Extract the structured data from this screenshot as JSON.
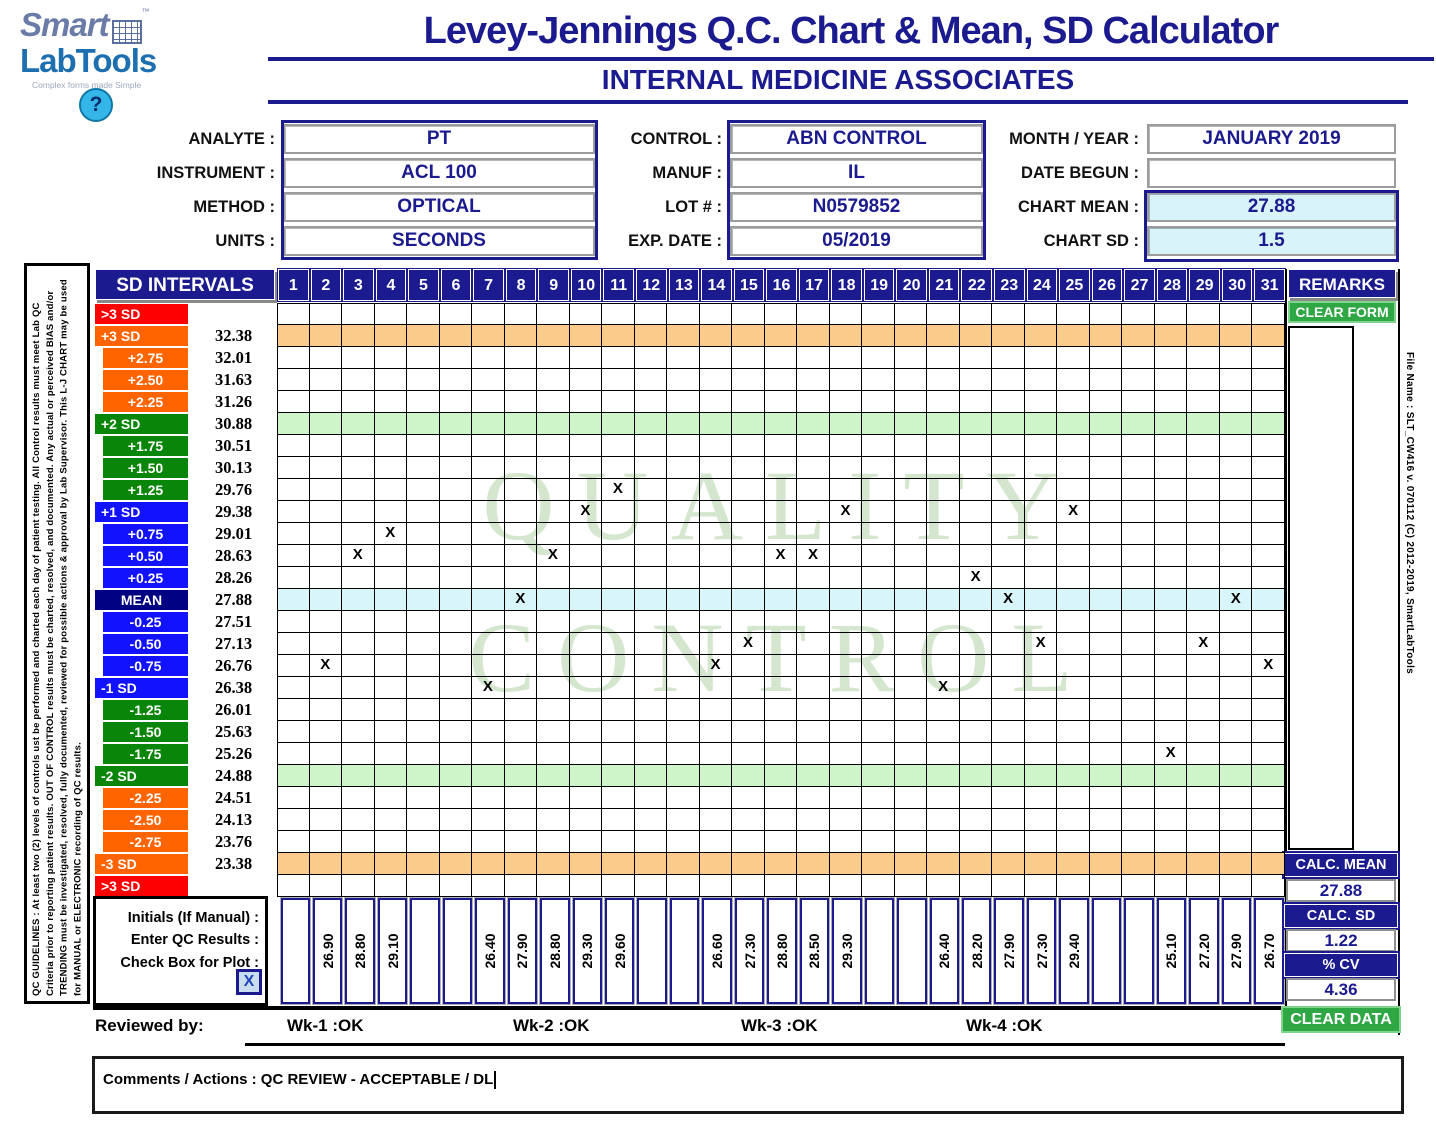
{
  "logo": {
    "smart": "Smart",
    "labtools": "LabTools",
    "tagline": "Complex forms made Simple",
    "help": "?"
  },
  "header": {
    "title": "Levey-Jennings Q.C. Chart & Mean, SD Calculator",
    "subtitle": "INTERNAL MEDICINE ASSOCIATES"
  },
  "form": {
    "left": [
      {
        "label": "ANALYTE :",
        "value": "PT"
      },
      {
        "label": "INSTRUMENT :",
        "value": "ACL 100"
      },
      {
        "label": "METHOD :",
        "value": "OPTICAL"
      },
      {
        "label": "UNITS :",
        "value": "SECONDS"
      }
    ],
    "mid": [
      {
        "label": "CONTROL :",
        "value": "ABN CONTROL"
      },
      {
        "label": "MANUF :",
        "value": "IL"
      },
      {
        "label": "LOT # :",
        "value": "N0579852"
      },
      {
        "label": "EXP. DATE :",
        "value": "05/2019"
      }
    ],
    "right": [
      {
        "label": "MONTH / YEAR :",
        "value": "JANUARY 2019"
      },
      {
        "label": "DATE BEGUN :",
        "value": ""
      },
      {
        "label": "CHART MEAN :",
        "value": "27.88",
        "highlight": true
      },
      {
        "label": "CHART SD :",
        "value": "1.5",
        "highlight": true
      }
    ]
  },
  "table": {
    "sd_intervals_label": "SD INTERVALS",
    "remarks_label": "REMARKS",
    "clear_form_label": "CLEAR FORM",
    "days": [
      "1",
      "2",
      "3",
      "4",
      "5",
      "6",
      "7",
      "8",
      "9",
      "10",
      "11",
      "12",
      "13",
      "14",
      "15",
      "16",
      "17",
      "18",
      "19",
      "20",
      "21",
      "22",
      "23",
      "24",
      "25",
      "26",
      "27",
      "28",
      "29",
      "30",
      "31"
    ],
    "rows": [
      {
        "label": ">3 SD",
        "value": "",
        "color": "red"
      },
      {
        "label": "+3 SD",
        "value": "32.38",
        "color": "orange",
        "band": "tan"
      },
      {
        "label": "+2.75",
        "value": "32.01",
        "color": "orange",
        "indent": true
      },
      {
        "label": "+2.50",
        "value": "31.63",
        "color": "orange",
        "indent": true
      },
      {
        "label": "+2.25",
        "value": "31.26",
        "color": "orange",
        "indent": true
      },
      {
        "label": "+2 SD",
        "value": "30.88",
        "color": "green",
        "band": "green"
      },
      {
        "label": "+1.75",
        "value": "30.51",
        "color": "green",
        "indent": true
      },
      {
        "label": "+1.50",
        "value": "30.13",
        "color": "green",
        "indent": true
      },
      {
        "label": "+1.25",
        "value": "29.76",
        "color": "green",
        "indent": true,
        "marks": [
          11
        ]
      },
      {
        "label": "+1 SD",
        "value": "29.38",
        "color": "blue",
        "marks": [
          10,
          18,
          25
        ]
      },
      {
        "label": "+0.75",
        "value": "29.01",
        "color": "blue",
        "indent": true,
        "marks": [
          4
        ]
      },
      {
        "label": "+0.50",
        "value": "28.63",
        "color": "blue",
        "indent": true,
        "marks": [
          3,
          9,
          16,
          17
        ]
      },
      {
        "label": "+0.25",
        "value": "28.26",
        "color": "blue",
        "indent": true,
        "marks": [
          22
        ]
      },
      {
        "label": "MEAN",
        "value": "27.88",
        "color": "navy",
        "band": "cyan",
        "marks": [
          8,
          23,
          30
        ]
      },
      {
        "label": "-0.25",
        "value": "27.51",
        "color": "blue",
        "indent": true
      },
      {
        "label": "-0.50",
        "value": "27.13",
        "color": "blue",
        "indent": true,
        "marks": [
          15,
          24,
          29
        ]
      },
      {
        "label": "-0.75",
        "value": "26.76",
        "color": "blue",
        "indent": true,
        "marks": [
          2,
          14,
          31
        ]
      },
      {
        "label": "-1 SD",
        "value": "26.38",
        "color": "blue",
        "marks": [
          7,
          21
        ]
      },
      {
        "label": "-1.25",
        "value": "26.01",
        "color": "green",
        "indent": true
      },
      {
        "label": "-1.50",
        "value": "25.63",
        "color": "green",
        "indent": true
      },
      {
        "label": "-1.75",
        "value": "25.26",
        "color": "green",
        "indent": true,
        "marks": [
          28
        ]
      },
      {
        "label": "-2 SD",
        "value": "24.88",
        "color": "green",
        "band": "green"
      },
      {
        "label": "-2.25",
        "value": "24.51",
        "color": "orange",
        "indent": true
      },
      {
        "label": "-2.50",
        "value": "24.13",
        "color": "orange",
        "indent": true
      },
      {
        "label": "-2.75",
        "value": "23.76",
        "color": "orange",
        "indent": true
      },
      {
        "label": "-3 SD",
        "value": "23.38",
        "color": "orange",
        "band": "tan"
      },
      {
        "label": ">3 SD",
        "value": "",
        "color": "red"
      }
    ],
    "mark_symbol": "X"
  },
  "watermark": {
    "line1": "QUALITY",
    "line2": "CONTROL"
  },
  "bottom": {
    "initials_label": "Initials (If Manual) :",
    "enter_label": "Enter QC Results :",
    "checkbox_label": "Check Box for Plot :",
    "checkbox_mark": "X",
    "qc_results": [
      "",
      "26.90",
      "28.80",
      "29.10",
      "",
      "",
      "26.40",
      "27.90",
      "28.80",
      "29.30",
      "29.60",
      "",
      "",
      "26.60",
      "27.30",
      "28.80",
      "28.50",
      "29.30",
      "",
      "",
      "26.40",
      "28.20",
      "27.90",
      "27.30",
      "29.40",
      "",
      "",
      "25.10",
      "27.20",
      "27.90",
      "26.70"
    ],
    "calc": {
      "mean_label": "CALC. MEAN",
      "mean": "27.88",
      "sd_label": "CALC. SD",
      "sd": "1.22",
      "cv_label": "% CV",
      "cv": "4.36"
    },
    "clear_data_label": "CLEAR DATA"
  },
  "review": {
    "label": "Reviewed by:",
    "weeks": [
      "Wk-1 :OK",
      "Wk-2 :OK",
      "Wk-3 :OK",
      "Wk-4 :OK"
    ]
  },
  "comments": {
    "text": "Comments / Actions : QC REVIEW - ACCEPTABLE / DL"
  },
  "side_notes": {
    "left_guidelines": "QC GUIDELINES : At least two (2) levels of controls ust be performed and charted each day of patient testing. All Control results must meet Lab QC Criteria prior to reporting patient results. OUT OF CONTROL results must be charted, resolved, and documented. Any actual or perceived BIAS and/or TRENDING must be investigated, resolved, fully documented, reviewed for possible actions & approval by Lab Supervisor.  This L-J CHART may be used for MANUAL or ELECTRONIC recording of QC results.",
    "right_filename": "File Name : SLT_CW416 v. 070112  (C) 2012-2019, SmartLabTools"
  },
  "colors": {
    "navy": "#1b1b8f",
    "red": "#fe0000",
    "orange": "#ff6400",
    "green": "#098609",
    "blue": "#1212fe",
    "band_tan": "#fbcb8c",
    "band_green": "#cdf5c9",
    "band_cyan": "#d8f6fa",
    "button_green": "#2fa744",
    "field_cyan": "#d9f4f8",
    "watermark_green": "#d5e6cf"
  }
}
